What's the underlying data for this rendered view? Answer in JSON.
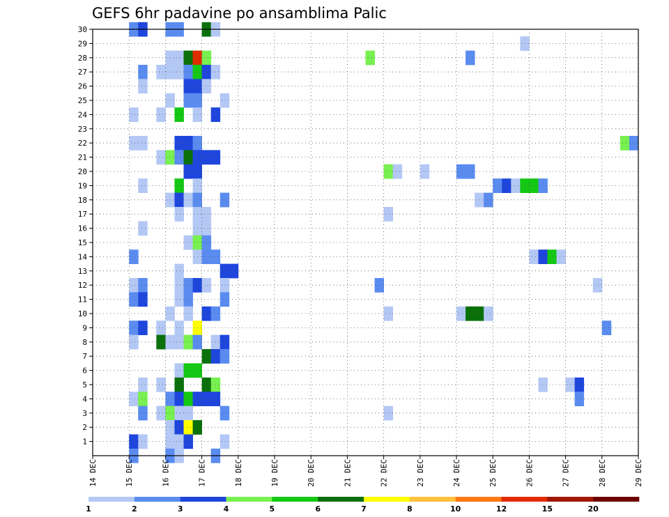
{
  "chart_data": {
    "type": "heatmap",
    "title": "GEFS 6hr padavine po ansamblima Palic",
    "xlabel": "",
    "ylabel": "",
    "x_tick_labels": [
      "14 DEC",
      "15 DEC",
      "16 DEC",
      "17 DEC",
      "18 DEC",
      "19 DEC",
      "20 DEC",
      "21 DEC",
      "22 DEC",
      "23 DEC",
      "24 DEC",
      "25 DEC",
      "26 DEC",
      "27 DEC",
      "28 DEC",
      "29 DEC"
    ],
    "y_tick_labels": [
      "1",
      "2",
      "3",
      "4",
      "5",
      "6",
      "7",
      "8",
      "9",
      "10",
      "11",
      "12",
      "13",
      "14",
      "15",
      "16",
      "17",
      "18",
      "19",
      "20",
      "21",
      "22",
      "23",
      "24",
      "25",
      "26",
      "27",
      "28",
      "29",
      "30"
    ],
    "steps_per_day": 4,
    "grid": "dotted",
    "colorbar": {
      "position": "bottom",
      "labels": [
        "1",
        "2",
        "3",
        "4",
        "5",
        "6",
        "7",
        "8",
        "10",
        "12",
        "15",
        "20"
      ],
      "colors": [
        "#b4c8f5",
        "#5a8cf0",
        "#1e46dc",
        "#78f050",
        "#14c814",
        "#0a700a",
        "#ffff00",
        "#ffc03c",
        "#ff7814",
        "#e02c00",
        "#a01800",
        "#6e0000"
      ]
    },
    "points": [
      [
        30,
        4,
        2
      ],
      [
        30,
        5,
        3
      ],
      [
        30,
        8,
        2
      ],
      [
        30,
        9,
        2
      ],
      [
        30,
        12,
        6
      ],
      [
        30,
        13,
        1
      ],
      [
        29,
        47,
        1
      ],
      [
        28,
        8,
        1
      ],
      [
        28,
        9,
        1
      ],
      [
        28,
        10,
        6
      ],
      [
        28,
        11,
        10
      ],
      [
        28,
        12,
        4
      ],
      [
        28,
        30,
        4
      ],
      [
        28,
        41,
        2
      ],
      [
        27,
        5,
        2
      ],
      [
        27,
        7,
        1
      ],
      [
        27,
        8,
        1
      ],
      [
        27,
        9,
        1
      ],
      [
        27,
        10,
        2
      ],
      [
        27,
        11,
        5
      ],
      [
        27,
        12,
        3
      ],
      [
        27,
        13,
        1
      ],
      [
        26,
        5,
        1
      ],
      [
        26,
        10,
        3
      ],
      [
        26,
        11,
        3
      ],
      [
        26,
        12,
        1
      ],
      [
        25,
        8,
        1
      ],
      [
        25,
        10,
        2
      ],
      [
        25,
        11,
        2
      ],
      [
        25,
        14,
        1
      ],
      [
        24,
        4,
        1
      ],
      [
        24,
        7,
        1
      ],
      [
        24,
        9,
        5
      ],
      [
        24,
        11,
        1
      ],
      [
        24,
        13,
        3
      ],
      [
        22,
        4,
        1
      ],
      [
        22,
        5,
        1
      ],
      [
        22,
        9,
        3
      ],
      [
        22,
        10,
        3
      ],
      [
        22,
        11,
        2
      ],
      [
        22,
        58,
        4
      ],
      [
        22,
        59,
        2
      ],
      [
        21,
        7,
        1
      ],
      [
        21,
        8,
        4
      ],
      [
        21,
        9,
        2
      ],
      [
        21,
        10,
        6
      ],
      [
        21,
        11,
        3
      ],
      [
        21,
        12,
        3
      ],
      [
        21,
        13,
        3
      ],
      [
        20,
        10,
        3
      ],
      [
        20,
        11,
        3
      ],
      [
        20,
        32,
        4
      ],
      [
        20,
        33,
        1
      ],
      [
        20,
        36,
        1
      ],
      [
        20,
        40,
        2
      ],
      [
        20,
        41,
        2
      ],
      [
        19,
        5,
        1
      ],
      [
        19,
        9,
        5
      ],
      [
        19,
        11,
        1
      ],
      [
        19,
        44,
        2
      ],
      [
        19,
        45,
        3
      ],
      [
        19,
        46,
        1
      ],
      [
        19,
        47,
        5
      ],
      [
        19,
        48,
        5
      ],
      [
        19,
        49,
        2
      ],
      [
        18,
        8,
        1
      ],
      [
        18,
        9,
        3
      ],
      [
        18,
        10,
        1
      ],
      [
        18,
        11,
        2
      ],
      [
        18,
        14,
        2
      ],
      [
        18,
        42,
        1
      ],
      [
        18,
        43,
        2
      ],
      [
        17,
        9,
        1
      ],
      [
        17,
        11,
        1
      ],
      [
        17,
        12,
        1
      ],
      [
        17,
        32,
        1
      ],
      [
        16,
        5,
        1
      ],
      [
        16,
        11,
        1
      ],
      [
        16,
        12,
        1
      ],
      [
        15,
        10,
        1
      ],
      [
        15,
        11,
        4
      ],
      [
        15,
        12,
        2
      ],
      [
        14,
        4,
        2
      ],
      [
        14,
        11,
        1
      ],
      [
        14,
        12,
        2
      ],
      [
        14,
        13,
        2
      ],
      [
        14,
        48,
        1
      ],
      [
        14,
        49,
        3
      ],
      [
        14,
        50,
        5
      ],
      [
        14,
        51,
        1
      ],
      [
        13,
        9,
        1
      ],
      [
        13,
        14,
        3
      ],
      [
        13,
        15,
        3
      ],
      [
        12,
        4,
        1
      ],
      [
        12,
        5,
        2
      ],
      [
        12,
        9,
        1
      ],
      [
        12,
        10,
        2
      ],
      [
        12,
        11,
        3
      ],
      [
        12,
        12,
        1
      ],
      [
        12,
        14,
        1
      ],
      [
        12,
        31,
        2
      ],
      [
        12,
        55,
        1
      ],
      [
        11,
        4,
        2
      ],
      [
        11,
        5,
        3
      ],
      [
        11,
        9,
        1
      ],
      [
        11,
        10,
        2
      ],
      [
        11,
        14,
        2
      ],
      [
        10,
        8,
        1
      ],
      [
        10,
        10,
        1
      ],
      [
        10,
        12,
        3
      ],
      [
        10,
        13,
        2
      ],
      [
        10,
        32,
        1
      ],
      [
        10,
        40,
        1
      ],
      [
        10,
        41,
        6
      ],
      [
        10,
        42,
        6
      ],
      [
        10,
        43,
        1
      ],
      [
        9,
        4,
        2
      ],
      [
        9,
        5,
        3
      ],
      [
        9,
        7,
        1
      ],
      [
        9,
        9,
        1
      ],
      [
        9,
        11,
        7
      ],
      [
        9,
        56,
        2
      ],
      [
        8,
        4,
        1
      ],
      [
        8,
        7,
        6
      ],
      [
        8,
        8,
        1
      ],
      [
        8,
        9,
        1
      ],
      [
        8,
        10,
        4
      ],
      [
        8,
        11,
        2
      ],
      [
        8,
        13,
        1
      ],
      [
        8,
        14,
        3
      ],
      [
        7,
        12,
        6
      ],
      [
        7,
        13,
        3
      ],
      [
        7,
        14,
        2
      ],
      [
        6,
        9,
        1
      ],
      [
        6,
        10,
        5
      ],
      [
        6,
        11,
        5
      ],
      [
        5,
        5,
        1
      ],
      [
        5,
        7,
        1
      ],
      [
        5,
        9,
        6
      ],
      [
        5,
        12,
        6
      ],
      [
        5,
        13,
        4
      ],
      [
        5,
        49,
        1
      ],
      [
        5,
        52,
        1
      ],
      [
        5,
        53,
        3
      ],
      [
        4,
        4,
        1
      ],
      [
        4,
        5,
        4
      ],
      [
        4,
        8,
        2
      ],
      [
        4,
        9,
        3
      ],
      [
        4,
        10,
        5
      ],
      [
        4,
        11,
        3
      ],
      [
        4,
        12,
        3
      ],
      [
        4,
        13,
        3
      ],
      [
        4,
        53,
        2
      ],
      [
        3,
        5,
        2
      ],
      [
        3,
        7,
        1
      ],
      [
        3,
        8,
        4
      ],
      [
        3,
        9,
        1
      ],
      [
        3,
        10,
        1
      ],
      [
        3,
        14,
        2
      ],
      [
        3,
        32,
        1
      ],
      [
        2,
        8,
        1
      ],
      [
        2,
        9,
        3
      ],
      [
        2,
        10,
        7
      ],
      [
        2,
        11,
        6
      ],
      [
        1,
        4,
        3
      ],
      [
        1,
        5,
        1
      ],
      [
        1,
        8,
        1
      ],
      [
        1,
        9,
        1
      ],
      [
        1,
        10,
        3
      ],
      [
        1,
        14,
        1
      ],
      [
        0,
        4,
        2
      ],
      [
        0,
        8,
        2
      ],
      [
        0,
        9,
        1
      ],
      [
        0,
        13,
        2
      ]
    ]
  }
}
